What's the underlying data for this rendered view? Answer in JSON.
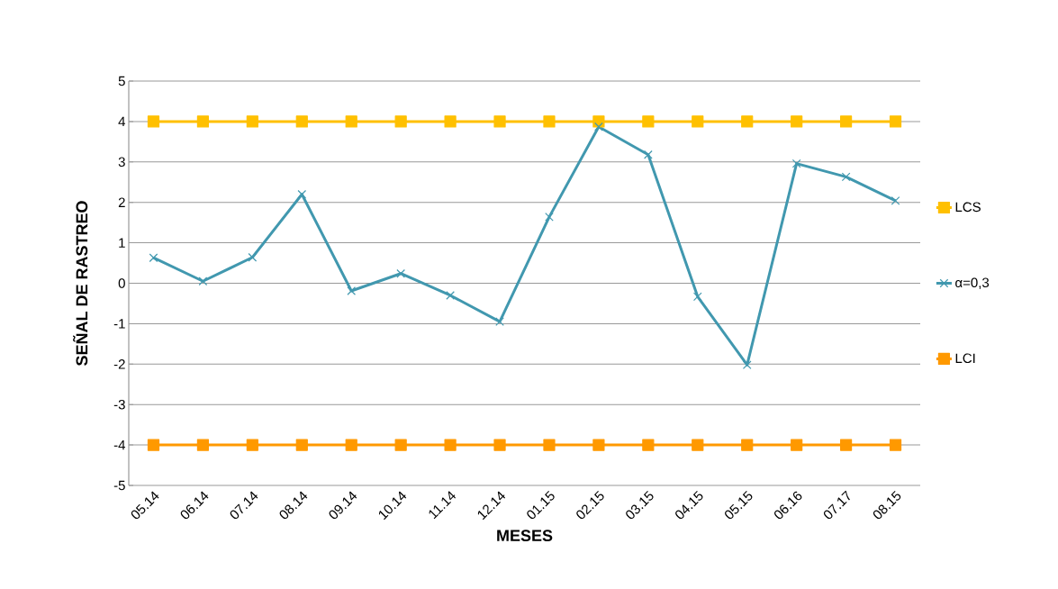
{
  "chart_data": {
    "type": "line",
    "xlabel": "MESES",
    "ylabel": "SEÑAL DE RASTREO",
    "categories": [
      "05.14",
      "06.14",
      "07.14",
      "08.14",
      "09.14",
      "10.14",
      "11.14",
      "12.14",
      "01.15",
      "02.15",
      "03.15",
      "04.15",
      "05.15",
      "06.16",
      "07.17",
      "08.15"
    ],
    "series": [
      {
        "name": "LCS",
        "color": "#ffc000",
        "marker": "square",
        "values": [
          4,
          4,
          4,
          4,
          4,
          4,
          4,
          4,
          4,
          4,
          4,
          4,
          4,
          4,
          4,
          4
        ]
      },
      {
        "name": "α=0,3",
        "color": "#4198af",
        "marker": "cross",
        "values": [
          0.63,
          0.05,
          0.64,
          2.2,
          -0.19,
          0.24,
          -0.3,
          -0.95,
          1.64,
          3.87,
          3.18,
          -0.33,
          -2.02,
          2.96,
          2.63,
          2.04
        ]
      },
      {
        "name": "LCI",
        "color": "#ff9900",
        "marker": "square",
        "values": [
          -4,
          -4,
          -4,
          -4,
          -4,
          -4,
          -4,
          -4,
          -4,
          -4,
          -4,
          -4,
          -4,
          -4,
          -4,
          -4
        ]
      }
    ],
    "ylim": [
      -5,
      5
    ],
    "yticks": [
      -5,
      -4,
      -3,
      -2,
      -1,
      0,
      1,
      2,
      3,
      4,
      5
    ],
    "grid": "y",
    "legend": "right",
    "line_style": "solid"
  }
}
